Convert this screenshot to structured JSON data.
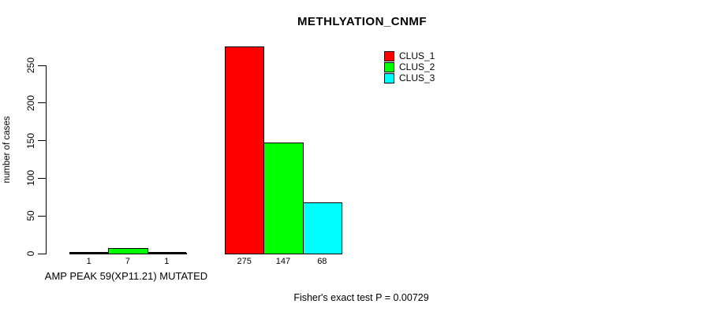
{
  "chart_data": {
    "type": "bar",
    "title": "METHLYATION_CNMF",
    "ylabel": "number of cases",
    "xlabel": "AMP PEAK 59(XP11.21) MUTATED",
    "ylim": [
      0,
      250
    ],
    "yticks": [
      0,
      50,
      100,
      150,
      200,
      250
    ],
    "grid": false,
    "legend_position": "top-right",
    "categories": [
      "AMP PEAK 59(XP11.21) MUTATED",
      ""
    ],
    "series": [
      {
        "name": "CLUS_1",
        "color": "#ff0000",
        "values": [
          1,
          275
        ]
      },
      {
        "name": "CLUS_2",
        "color": "#00ff00",
        "values": [
          7,
          147
        ]
      },
      {
        "name": "CLUS_3",
        "color": "#00ffff",
        "values": [
          1,
          68
        ]
      }
    ],
    "bar_value_labels": [
      [
        "1",
        "7",
        "1"
      ],
      [
        "275",
        "147",
        "68"
      ]
    ],
    "annotation": "Fisher's exact test P = 0.00729"
  },
  "colors": {
    "background": "#ffffff",
    "axis": "#000000",
    "text": "#000000",
    "clus_1": "#ff0000",
    "clus_2": "#00ff00",
    "clus_3": "#00ffff"
  }
}
